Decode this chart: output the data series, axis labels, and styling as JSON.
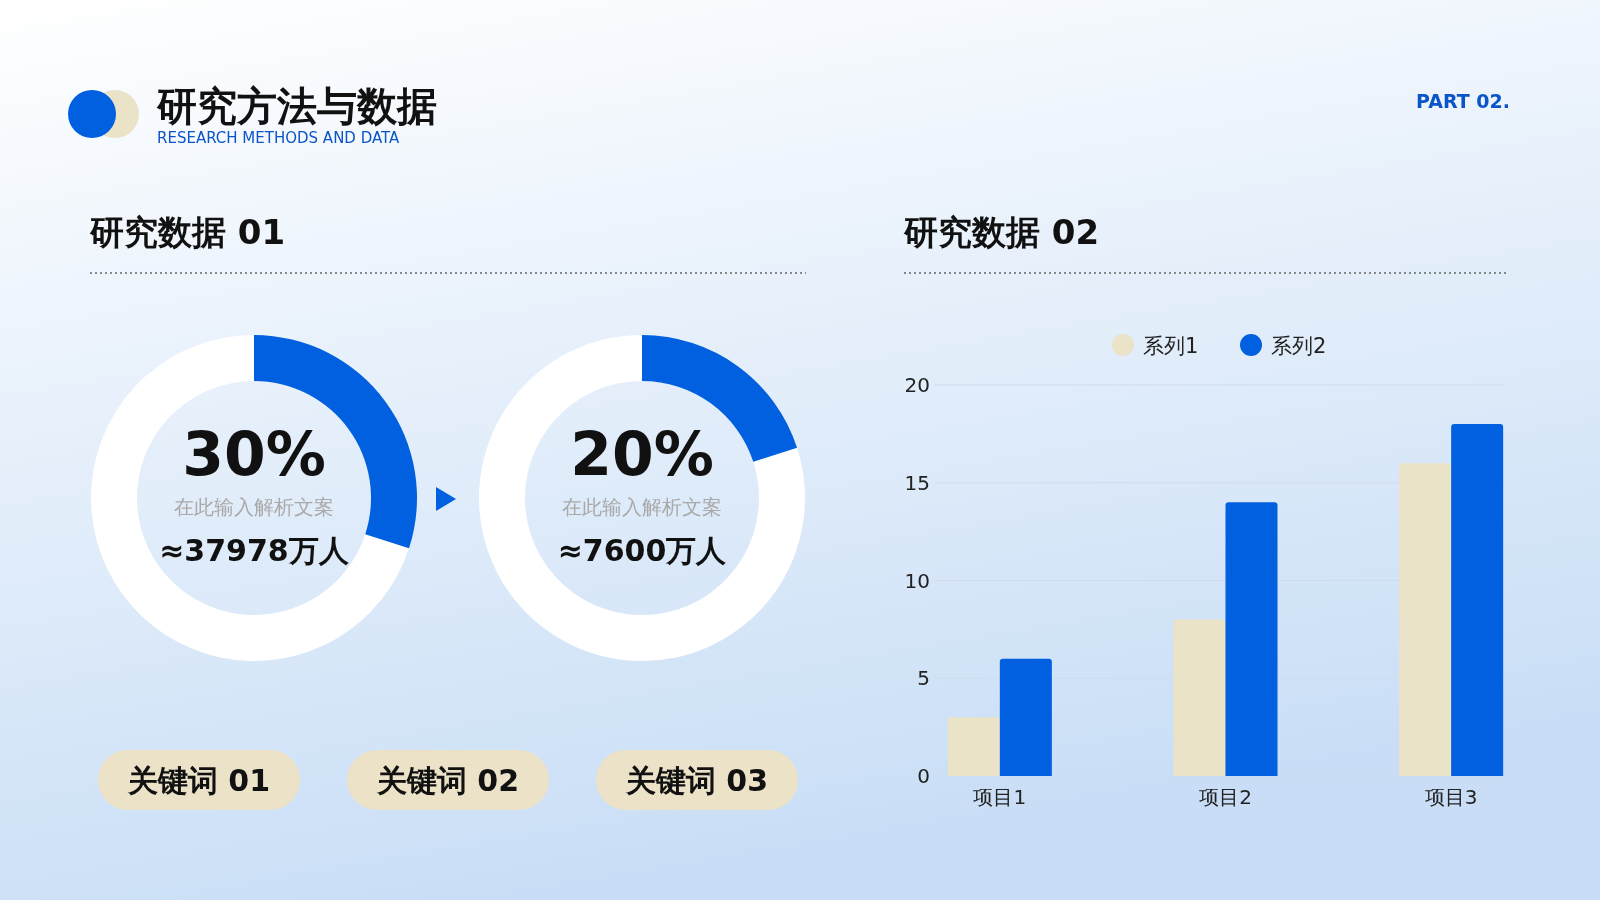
{
  "chart_data": [
    {
      "type": "other",
      "title": "研究方法与数据",
      "subtitle": "RESEARCH METHODS AND DATA",
      "annotations": [
        "PART 02."
      ]
    },
    {
      "type": "donut",
      "title": "研究数据 01",
      "categories": [
        null,
        null
      ],
      "values": [
        30,
        70
      ],
      "colors": [
        "#0060df",
        "#ffffff"
      ],
      "annotations": [
        "30%",
        "在此输入解析文案",
        "≈37978万人"
      ]
    },
    {
      "type": "donut",
      "categories": [
        null,
        null
      ],
      "values": [
        20,
        80
      ],
      "colors": [
        "#0060df",
        "#ffffff"
      ],
      "annotations": [
        "20%",
        "在此输入解析文案",
        "≈7600万人"
      ]
    },
    {
      "type": "other",
      "annotations": [
        "关键词 01",
        "关键词 02",
        "关键词 03"
      ]
    },
    {
      "type": "bar",
      "title": "研究数据 02",
      "categories": [
        "项目1",
        "项目2",
        "项目3"
      ],
      "series": [
        {
          "name": "系列1",
          "color": "#ebe3c8",
          "values": [
            3,
            8,
            16
          ]
        },
        {
          "name": "系列2",
          "color": "#0060df",
          "values": [
            6,
            14,
            18
          ]
        }
      ],
      "ylim": [
        0,
        20
      ],
      "yticks": [
        0,
        5,
        10,
        15,
        20
      ],
      "grid": "y",
      "legend": "top"
    }
  ]
}
